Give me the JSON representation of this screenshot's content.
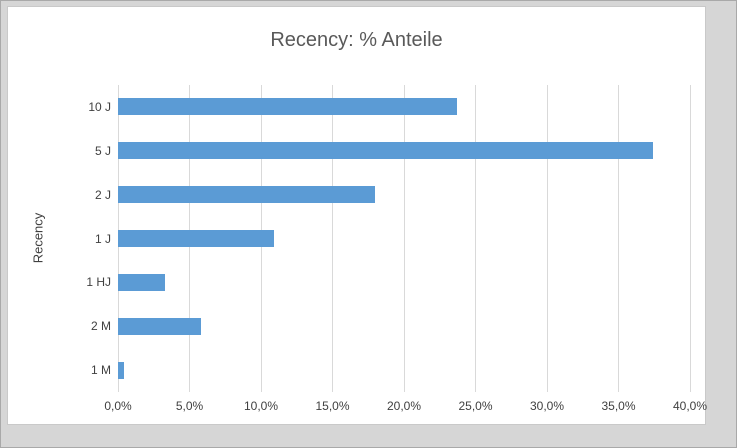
{
  "chart": {
    "title": "Recency: % Anteile",
    "y_axis_label": "Recency"
  },
  "chart_data": {
    "type": "bar",
    "orientation": "horizontal",
    "title": "Recency: % Anteile",
    "xlabel": "",
    "ylabel": "Recency",
    "categories": [
      "10 J",
      "5 J",
      "2 J",
      "1 J",
      "1 HJ",
      "2 M",
      "1 M"
    ],
    "values": [
      23.7,
      37.4,
      18.0,
      10.9,
      3.3,
      5.8,
      0.4
    ],
    "xlim": [
      0,
      40
    ],
    "x_ticks": [
      "0,0%",
      "5,0%",
      "10,0%",
      "15,0%",
      "20,0%",
      "25,0%",
      "30,0%",
      "35,0%",
      "40,0%"
    ],
    "grid": true,
    "legend": false,
    "bar_color": "#5B9BD5",
    "gridline_color": "#d9d9d9",
    "text_color": "#404040",
    "title_color": "#595959"
  }
}
